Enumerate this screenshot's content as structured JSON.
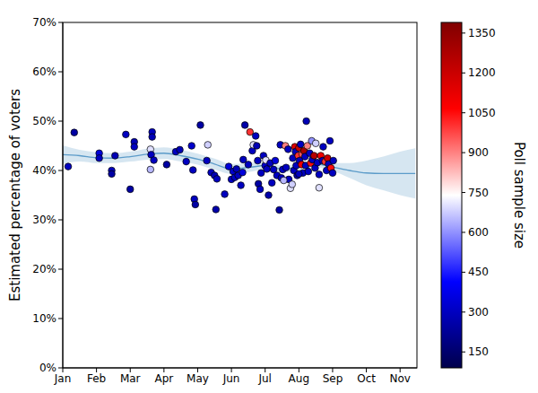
{
  "chart_data": {
    "type": "scatter",
    "y_label": "Estimated percentage of voters",
    "marker": "circle",
    "xlim": [
      0,
      10.5
    ],
    "xticks": [
      {
        "value": 0,
        "label": "Jan"
      },
      {
        "value": 1,
        "label": "Feb"
      },
      {
        "value": 2,
        "label": "Mar"
      },
      {
        "value": 3,
        "label": "Apr"
      },
      {
        "value": 4,
        "label": "May"
      },
      {
        "value": 5,
        "label": "Jun"
      },
      {
        "value": 6,
        "label": "Jul"
      },
      {
        "value": 7,
        "label": "Aug"
      },
      {
        "value": 8,
        "label": "Sep"
      },
      {
        "value": 9,
        "label": "Oct"
      },
      {
        "value": 10,
        "label": "Nov"
      }
    ],
    "ylim": [
      0,
      70
    ],
    "yticks": [
      {
        "value": 0,
        "label": "0%"
      },
      {
        "value": 10,
        "label": "10%"
      },
      {
        "value": 20,
        "label": "20%"
      },
      {
        "value": 30,
        "label": "30%"
      },
      {
        "value": 40,
        "label": "40%"
      },
      {
        "value": 50,
        "label": "50%"
      },
      {
        "value": 60,
        "label": "60%"
      },
      {
        "value": 70,
        "label": "70%"
      }
    ],
    "grid": false,
    "points": {
      "x": [
        0.16,
        0.34,
        1.08,
        1.08,
        1.45,
        1.45,
        1.55,
        1.87,
        2.0,
        2.12,
        2.12,
        2.6,
        2.6,
        2.62,
        2.65,
        2.65,
        2.7,
        3.08,
        3.35,
        3.47,
        3.66,
        3.82,
        3.86,
        3.9,
        3.93,
        4.08,
        4.27,
        4.3,
        4.4,
        4.5,
        4.54,
        4.57,
        4.8,
        4.92,
        5.0,
        5.05,
        5.1,
        5.15,
        5.2,
        5.28,
        5.33,
        5.4,
        5.5,
        5.55,
        5.62,
        5.65,
        5.72,
        5.75,
        5.78,
        5.8,
        5.85,
        5.88,
        5.95,
        6.0,
        6.02,
        6.05,
        6.1,
        6.15,
        6.2,
        6.25,
        6.3,
        6.35,
        6.42,
        6.45,
        6.48,
        6.52,
        6.6,
        6.62,
        6.68,
        6.7,
        6.75,
        6.8,
        6.82,
        6.85,
        6.88,
        6.9,
        6.92,
        6.95,
        6.98,
        7.0,
        7.02,
        7.05,
        7.08,
        7.1,
        7.12,
        7.15,
        7.18,
        7.2,
        7.22,
        7.25,
        7.28,
        7.32,
        7.35,
        7.38,
        7.4,
        7.45,
        7.48,
        7.5,
        7.55,
        7.6,
        7.65,
        7.7,
        7.72,
        7.78,
        7.82,
        7.85,
        7.88,
        7.92,
        7.95,
        8.0,
        8.02,
        7.6,
        6.55,
        5.35,
        7.0
      ],
      "values": [
        40.8,
        47.7,
        43.5,
        42.5,
        40.0,
        39.3,
        43.0,
        47.3,
        36.2,
        45.8,
        44.8,
        44.3,
        40.2,
        43.2,
        47.8,
        46.8,
        42.1,
        41.2,
        43.8,
        44.2,
        41.8,
        45.0,
        40.1,
        34.2,
        33.1,
        49.2,
        42.0,
        45.2,
        39.6,
        39.0,
        32.1,
        38.3,
        35.2,
        40.8,
        38.2,
        39.8,
        38.6,
        40.3,
        39.0,
        37.0,
        39.6,
        49.2,
        41.2,
        47.8,
        44.0,
        45.2,
        47.0,
        45.0,
        42.0,
        37.3,
        36.2,
        39.5,
        43.0,
        41.0,
        42.1,
        40.3,
        35.0,
        41.5,
        37.5,
        40.2,
        42.0,
        39.0,
        32.0,
        45.2,
        38.5,
        40.2,
        45.0,
        40.6,
        44.3,
        38.2,
        36.4,
        37.2,
        42.5,
        40.0,
        44.8,
        43.8,
        41.0,
        39.0,
        43.0,
        44.6,
        42.0,
        45.3,
        41.2,
        43.3,
        39.5,
        44.0,
        42.8,
        41.0,
        50.0,
        45.0,
        39.8,
        43.5,
        41.5,
        46.0,
        42.2,
        43.0,
        40.5,
        45.5,
        41.6,
        39.2,
        43.0,
        42.0,
        44.8,
        41.8,
        40.0,
        42.5,
        41.3,
        46.0,
        40.5,
        39.5,
        42.0,
        36.5,
        38.0,
        42.2,
        39.3
      ],
      "sample_size": [
        300,
        250,
        350,
        300,
        300,
        250,
        280,
        300,
        250,
        280,
        300,
        700,
        650,
        300,
        300,
        280,
        300,
        250,
        300,
        280,
        300,
        320,
        300,
        300,
        250,
        250,
        300,
        680,
        300,
        280,
        260,
        300,
        300,
        350,
        300,
        320,
        300,
        280,
        300,
        300,
        350,
        260,
        300,
        1000,
        300,
        700,
        300,
        280,
        300,
        250,
        300,
        300,
        300,
        320,
        700,
        300,
        260,
        300,
        300,
        300,
        350,
        300,
        250,
        300,
        300,
        300,
        900,
        300,
        300,
        300,
        700,
        680,
        300,
        300,
        1150,
        300,
        300,
        260,
        1000,
        1200,
        300,
        300,
        1100,
        950,
        300,
        1300,
        300,
        300,
        280,
        900,
        300,
        300,
        1050,
        600,
        300,
        1250,
        300,
        680,
        300,
        300,
        1100,
        300,
        300,
        1000,
        300,
        1200,
        300,
        300,
        1050,
        300,
        300,
        700,
        650,
        300,
        300
      ]
    },
    "trend": {
      "color": "#5b9bc9",
      "x": [
        0,
        0.5,
        1,
        1.5,
        2,
        2.5,
        3,
        3.5,
        4,
        4.5,
        5,
        5.5,
        6,
        6.5,
        7,
        7.5,
        8,
        8.5,
        9,
        9.5,
        10,
        10.45
      ],
      "values": [
        43.2,
        43.0,
        42.6,
        42.5,
        42.8,
        43.3,
        43.5,
        43.0,
        42.3,
        41.3,
        40.3,
        40.6,
        41.0,
        40.3,
        40.7,
        41.3,
        40.7,
        40.0,
        39.5,
        39.4,
        39.4,
        39.4
      ],
      "lower": [
        41.3,
        41.8,
        41.5,
        41.5,
        41.8,
        42.2,
        42.3,
        41.8,
        41.2,
        40.2,
        39.3,
        39.7,
        40.2,
        39.6,
        40.1,
        40.7,
        39.9,
        38.5,
        37.0,
        36.0,
        35.0,
        34.3
      ],
      "upper": [
        45.1,
        44.2,
        43.7,
        43.5,
        43.8,
        44.4,
        44.7,
        44.2,
        43.4,
        42.4,
        41.3,
        41.5,
        41.8,
        41.0,
        41.3,
        41.9,
        41.5,
        41.5,
        42.0,
        42.8,
        43.8,
        44.5
      ]
    },
    "color_bar": {
      "label": "Poll sample size",
      "range": [
        90,
        1390
      ],
      "ticks": [
        150,
        300,
        450,
        600,
        750,
        900,
        1050,
        1200,
        1350
      ]
    }
  }
}
